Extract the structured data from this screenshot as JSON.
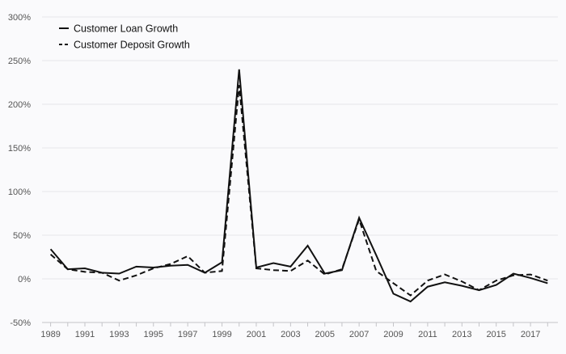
{
  "chart_data": {
    "type": "line",
    "title": "",
    "xlabel": "",
    "ylabel": "",
    "x": [
      1989,
      1990,
      1991,
      1992,
      1993,
      1994,
      1995,
      1996,
      1997,
      1998,
      1999,
      2000,
      2001,
      2002,
      2003,
      2004,
      2005,
      2006,
      2007,
      2008,
      2009,
      2010,
      2011,
      2012,
      2013,
      2014,
      2015,
      2016,
      2017,
      2018
    ],
    "xlim": [
      1988.5,
      2018.6
    ],
    "x_tick_labels": [
      "1989",
      "1991",
      "1993",
      "1995",
      "1997",
      "1999",
      "2001",
      "2003",
      "2005",
      "2007",
      "2009",
      "2011",
      "2013",
      "2015",
      "2017"
    ],
    "ylim": [
      -50,
      300
    ],
    "y_ticks": [
      -50,
      0,
      50,
      100,
      150,
      200,
      250,
      300
    ],
    "y_tick_labels": [
      "-50%",
      "0%",
      "50%",
      "100%",
      "150%",
      "200%",
      "250%",
      "300%"
    ],
    "grid": true,
    "legend_position": "top-left",
    "series": [
      {
        "name": "Customer Loan Growth",
        "style": "solid",
        "color": "#111111",
        "values": [
          34,
          11,
          12,
          7,
          6,
          14,
          13,
          15,
          16,
          7,
          19,
          240,
          13,
          18,
          14,
          38,
          6,
          10,
          70,
          27,
          -17,
          -26,
          -9,
          -4,
          -8,
          -13,
          -7,
          6,
          1,
          -5
        ]
      },
      {
        "name": "Customer Deposit Growth",
        "style": "dashed",
        "color": "#111111",
        "values": [
          28,
          11,
          8,
          7,
          -2,
          4,
          12,
          17,
          26,
          7,
          9,
          222,
          12,
          10,
          9,
          21,
          5,
          11,
          68,
          9,
          -5,
          -19,
          -2,
          5,
          -3,
          -13,
          -2,
          4,
          5,
          -2
        ]
      }
    ]
  }
}
